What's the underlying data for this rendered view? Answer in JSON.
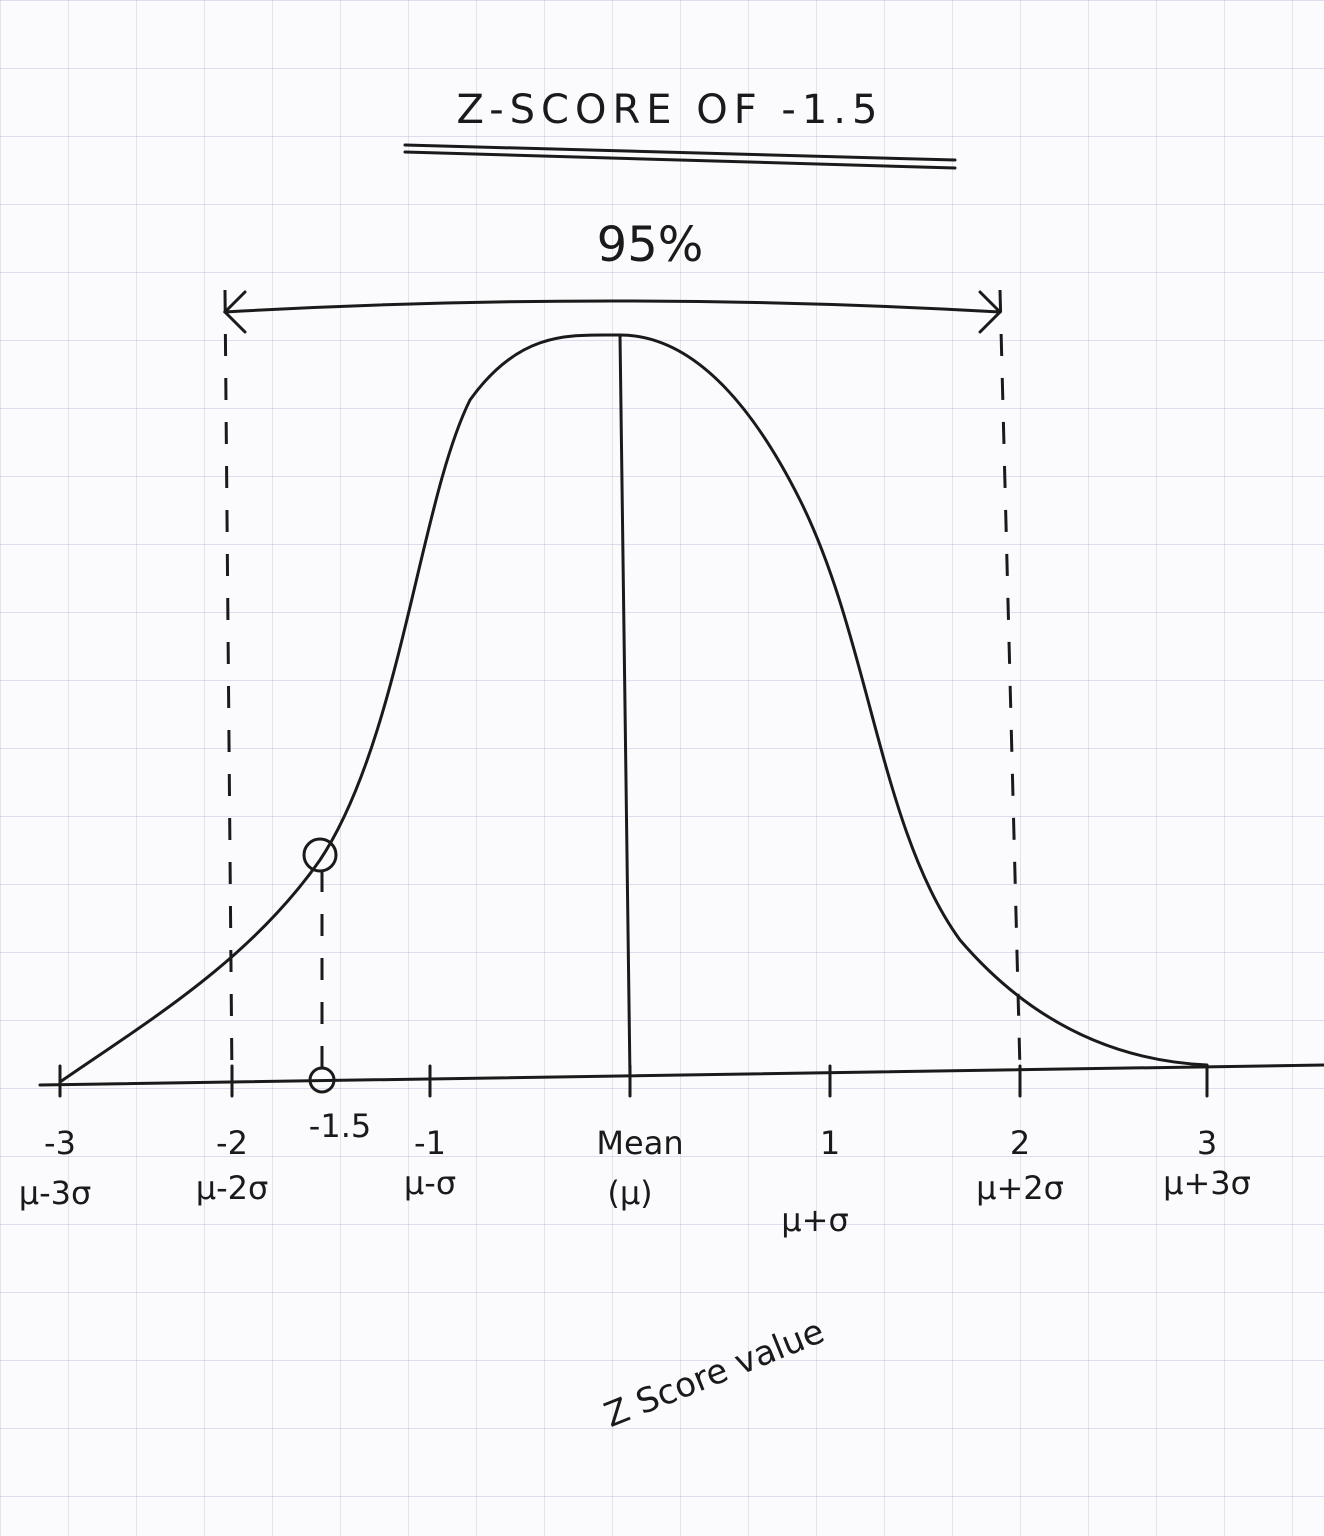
{
  "title": "Z-SCORE OF -1.5",
  "annotation": "95%",
  "axis": {
    "ticks": [
      {
        "z": "-3",
        "sigma": "μ-3σ"
      },
      {
        "z": "-2",
        "sigma": "μ-2σ"
      },
      {
        "z": "-1.5"
      },
      {
        "z": "-1",
        "sigma": "μ-σ"
      },
      {
        "z": "Mean",
        "sigma": "(μ)"
      },
      {
        "z": "1",
        "sigma": "μ+σ"
      },
      {
        "z": "2",
        "sigma": "μ+2σ"
      },
      {
        "z": "3",
        "sigma": "μ+3σ"
      }
    ],
    "label": "Z Score value"
  }
}
